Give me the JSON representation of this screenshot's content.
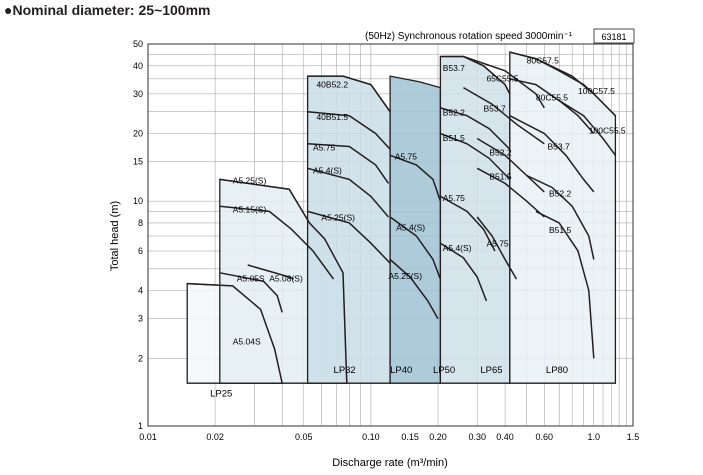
{
  "heading": "●Nominal diameter: 25~100mm",
  "chart_data": {
    "type": "performance-range",
    "title": "●Nominal diameter: 25~100mm",
    "subtitle": "(50Hz) Synchronous rotation speed 3000min⁻¹",
    "figure_id": "63181",
    "xlabel": "Discharge rate (m³/min)",
    "ylabel": "Total head (m)",
    "x_scale": "log",
    "y_scale": "log",
    "xlim": [
      0.01,
      1.5
    ],
    "ylim": [
      1,
      50
    ],
    "grid": true,
    "x_ticks": [
      {
        "v": 0.01,
        "label": "0.01"
      },
      {
        "v": 0.02,
        "label": "0.02"
      },
      {
        "v": 0.05,
        "label": "0.05"
      },
      {
        "v": 0.1,
        "label": "0.10"
      },
      {
        "v": 0.15,
        "label": "0.15"
      },
      {
        "v": 0.2,
        "label": "0.20"
      },
      {
        "v": 0.3,
        "label": "0.30"
      },
      {
        "v": 0.4,
        "label": "0.40"
      },
      {
        "v": 0.6,
        "label": "0.60"
      },
      {
        "v": 1.0,
        "label": "1.0"
      },
      {
        "v": 1.5,
        "label": "1.5"
      }
    ],
    "y_ticks": [
      {
        "v": 1,
        "label": "1"
      },
      {
        "v": 2,
        "label": "2"
      },
      {
        "v": 3,
        "label": "3"
      },
      {
        "v": 4,
        "label": "4"
      },
      {
        "v": 6,
        "label": "6"
      },
      {
        "v": 8,
        "label": "8"
      },
      {
        "v": 10,
        "label": "10"
      },
      {
        "v": 15,
        "label": "15"
      },
      {
        "v": 20,
        "label": "20"
      },
      {
        "v": 30,
        "label": "30"
      },
      {
        "v": 40,
        "label": "40"
      },
      {
        "v": 50,
        "label": "50"
      }
    ],
    "regions": [
      {
        "name": "LP25",
        "fill": "#f4f8fa",
        "label_at": [
          0.019,
          1.35
        ],
        "outline": [
          [
            0.015,
            1.55
          ],
          [
            0.015,
            4.3
          ],
          [
            0.024,
            4.2
          ],
          [
            0.032,
            3.3
          ],
          [
            0.037,
            2.2
          ],
          [
            0.04,
            1.55
          ]
        ]
      },
      {
        "name": "LP32",
        "fill": "#e3eef3",
        "label_at": [
          0.068,
          1.72
        ],
        "outline": [
          [
            0.021,
            1.55
          ],
          [
            0.021,
            12.5
          ],
          [
            0.043,
            11.3
          ],
          [
            0.053,
            8.0
          ],
          [
            0.062,
            6.8
          ],
          [
            0.075,
            4.8
          ],
          [
            0.078,
            1.55
          ]
        ]
      },
      {
        "name": "LP40",
        "fill": "#c9dde6",
        "label_at": [
          0.122,
          1.72
        ],
        "outline": [
          [
            0.052,
            1.55
          ],
          [
            0.052,
            36
          ],
          [
            0.075,
            36
          ],
          [
            0.1,
            33
          ],
          [
            0.122,
            25
          ],
          [
            0.122,
            1.55
          ]
        ]
      },
      {
        "name": "LP50",
        "fill": "#9fc2d2",
        "label_at": [
          0.19,
          1.72
        ],
        "outline": [
          [
            0.122,
            1.55
          ],
          [
            0.122,
            36
          ],
          [
            0.165,
            34
          ],
          [
            0.205,
            32
          ],
          [
            0.205,
            1.55
          ]
        ]
      },
      {
        "name": "LP65",
        "fill": "#cfe1e8",
        "label_at": [
          0.31,
          1.72
        ],
        "outline": [
          [
            0.205,
            1.55
          ],
          [
            0.205,
            44
          ],
          [
            0.26,
            44
          ],
          [
            0.32,
            40
          ],
          [
            0.4,
            33
          ],
          [
            0.42,
            30
          ],
          [
            0.42,
            1.55
          ]
        ]
      },
      {
        "name": "LP80",
        "fill": "#e8f1f5",
        "label_at": [
          0.61,
          1.72
        ],
        "outline": [
          [
            0.42,
            1.55
          ],
          [
            0.42,
            46
          ],
          [
            0.55,
            43
          ],
          [
            0.7,
            38
          ],
          [
            0.9,
            33
          ],
          [
            1.0,
            30
          ],
          [
            1.25,
            24
          ],
          [
            1.25,
            1.55
          ]
        ]
      }
    ],
    "curves": [
      {
        "name": "A5.04S",
        "label_at": [
          0.024,
          2.3
        ],
        "points": [
          [
            0.015,
            4.3
          ],
          [
            0.024,
            4.2
          ],
          [
            0.032,
            3.3
          ],
          [
            0.037,
            2.2
          ],
          [
            0.04,
            1.55
          ]
        ]
      },
      {
        "name": "A5.05S",
        "label_at": [
          0.025,
          4.4
        ],
        "points": [
          [
            0.021,
            4.8
          ],
          [
            0.033,
            4.4
          ],
          [
            0.038,
            3.8
          ],
          [
            0.04,
            3.2
          ]
        ]
      },
      {
        "name": "A5.08(S)",
        "label_at": [
          0.035,
          4.4
        ],
        "points": [
          [
            0.028,
            5.2
          ],
          [
            0.043,
            4.6
          ],
          [
            0.045,
            4.5
          ]
        ]
      },
      {
        "name": "A5.15(S)",
        "label_at": [
          0.024,
          8.9
        ],
        "points": [
          [
            0.021,
            9.5
          ],
          [
            0.035,
            9.0
          ],
          [
            0.044,
            7.5
          ],
          [
            0.055,
            6.0
          ],
          [
            0.068,
            4.5
          ]
        ]
      },
      {
        "name": "A5.25(S)",
        "label_at": [
          0.024,
          12.0
        ],
        "points": [
          [
            0.021,
            12.5
          ],
          [
            0.043,
            11.3
          ],
          [
            0.053,
            8.0
          ],
          [
            0.062,
            6.8
          ],
          [
            0.075,
            4.8
          ],
          [
            0.078,
            1.55
          ]
        ]
      },
      {
        "name": "40B52.2",
        "label_at": [
          0.057,
          32
        ],
        "points": [
          [
            0.052,
            36
          ],
          [
            0.075,
            36
          ],
          [
            0.1,
            33
          ],
          [
            0.122,
            25
          ]
        ]
      },
      {
        "name": "40B51.5",
        "label_at": [
          0.057,
          23
        ],
        "points": [
          [
            0.052,
            25
          ],
          [
            0.08,
            24
          ],
          [
            0.105,
            20
          ],
          [
            0.122,
            17
          ]
        ]
      },
      {
        "name": "A5.75",
        "label_at": [
          0.055,
          16.8
        ],
        "points": [
          [
            0.052,
            18
          ],
          [
            0.08,
            17.5
          ],
          [
            0.105,
            14.5
          ],
          [
            0.12,
            12
          ]
        ]
      },
      {
        "name": "A5.4(S)",
        "label_at": [
          0.055,
          13.3
        ],
        "points": [
          [
            0.052,
            14
          ],
          [
            0.08,
            12.5
          ],
          [
            0.1,
            10.5
          ],
          [
            0.12,
            8.5
          ]
        ]
      },
      {
        "name": "A5.25(S)",
        "label_at": [
          0.06,
          8.2
        ],
        "points": [
          [
            0.052,
            9.0
          ],
          [
            0.08,
            8.0
          ],
          [
            0.1,
            6.5
          ],
          [
            0.122,
            5.3
          ]
        ]
      },
      {
        "name": "A5.75",
        "label_at": [
          0.128,
          15.3
        ],
        "points": [
          [
            0.122,
            16
          ],
          [
            0.16,
            14.5
          ],
          [
            0.19,
            12.5
          ],
          [
            0.205,
            10
          ]
        ]
      },
      {
        "name": "A5.4(S)",
        "label_at": [
          0.13,
          7.4
        ],
        "points": [
          [
            0.122,
            8.5
          ],
          [
            0.16,
            7
          ],
          [
            0.19,
            5.5
          ],
          [
            0.205,
            4.5
          ]
        ]
      },
      {
        "name": "A5.25(S)",
        "label_at": [
          0.12,
          4.5
        ],
        "points": [
          [
            0.122,
            5.5
          ],
          [
            0.15,
            4.6
          ],
          [
            0.18,
            3.6
          ],
          [
            0.2,
            3
          ]
        ]
      },
      {
        "name": "B53.7",
        "label_at": [
          0.21,
          38
        ],
        "points": [
          [
            0.205,
            44
          ],
          [
            0.26,
            44
          ],
          [
            0.32,
            40
          ],
          [
            0.4,
            33
          ],
          [
            0.42,
            30
          ]
        ]
      },
      {
        "name": "B52.2",
        "label_at": [
          0.21,
          24
        ],
        "points": [
          [
            0.205,
            26
          ],
          [
            0.27,
            24
          ],
          [
            0.34,
            21
          ],
          [
            0.42,
            17
          ]
        ]
      },
      {
        "name": "B51.5",
        "label_at": [
          0.21,
          18.5
        ],
        "points": [
          [
            0.205,
            20
          ],
          [
            0.27,
            18
          ],
          [
            0.34,
            15.5
          ],
          [
            0.42,
            12.5
          ]
        ]
      },
      {
        "name": "A5.75",
        "label_at": [
          0.21,
          10.0
        ],
        "points": [
          [
            0.205,
            10.5
          ],
          [
            0.27,
            9.0
          ],
          [
            0.32,
            7.5
          ],
          [
            0.36,
            6
          ]
        ]
      },
      {
        "name": "A5.4(S)",
        "label_at": [
          0.21,
          6.0
        ],
        "points": [
          [
            0.205,
            6.5
          ],
          [
            0.26,
            5.6
          ],
          [
            0.3,
            4.6
          ],
          [
            0.33,
            3.6
          ]
        ]
      },
      {
        "name": "65C55.5",
        "label_at": [
          0.33,
          34
        ],
        "points": [
          [
            0.26,
            44
          ],
          [
            0.4,
            38
          ],
          [
            0.55,
            30
          ],
          [
            0.6,
            26
          ]
        ]
      },
      {
        "name": "B53.7",
        "label_at": [
          0.32,
          25
        ],
        "points": [
          [
            0.26,
            32
          ],
          [
            0.35,
            27
          ],
          [
            0.45,
            22
          ],
          [
            0.6,
            18
          ]
        ]
      },
      {
        "name": "B52.2",
        "label_at": [
          0.34,
          16
        ],
        "points": [
          [
            0.3,
            19
          ],
          [
            0.4,
            16
          ],
          [
            0.5,
            13
          ],
          [
            0.6,
            11
          ]
        ]
      },
      {
        "name": "B51.5",
        "label_at": [
          0.34,
          12.5
        ],
        "points": [
          [
            0.3,
            14
          ],
          [
            0.4,
            12
          ],
          [
            0.5,
            10
          ],
          [
            0.6,
            8.5
          ]
        ]
      },
      {
        "name": "A5.75",
        "label_at": [
          0.33,
          6.3
        ],
        "points": [
          [
            0.3,
            8.5
          ],
          [
            0.35,
            7
          ],
          [
            0.4,
            5.5
          ],
          [
            0.45,
            4.5
          ]
        ]
      },
      {
        "name": "80C57.5",
        "label_at": [
          0.5,
          41
        ],
        "points": [
          [
            0.42,
            46
          ],
          [
            0.55,
            43
          ],
          [
            0.7,
            38
          ],
          [
            0.9,
            33
          ],
          [
            1.0,
            30
          ]
        ]
      },
      {
        "name": "80C55.5",
        "label_at": [
          0.55,
          28
        ],
        "points": [
          [
            0.42,
            35
          ],
          [
            0.55,
            33
          ],
          [
            0.7,
            28
          ],
          [
            0.85,
            24
          ],
          [
            1.0,
            20
          ]
        ]
      },
      {
        "name": "100C57.5",
        "label_at": [
          0.85,
          30
        ],
        "points": [
          [
            0.55,
            43
          ],
          [
            0.8,
            36
          ],
          [
            1.0,
            30
          ],
          [
            1.25,
            24
          ]
        ]
      },
      {
        "name": "100C55.5",
        "label_at": [
          0.95,
          20
        ],
        "points": [
          [
            0.7,
            28
          ],
          [
            0.9,
            24
          ],
          [
            1.1,
            19
          ],
          [
            1.25,
            16
          ]
        ]
      },
      {
        "name": "B53.7",
        "label_at": [
          0.62,
          17
        ],
        "points": [
          [
            0.42,
            24
          ],
          [
            0.6,
            20
          ],
          [
            0.75,
            16
          ],
          [
            0.9,
            12.5
          ],
          [
            1.0,
            11
          ]
        ]
      },
      {
        "name": "B52.2",
        "label_at": [
          0.63,
          10.5
        ],
        "points": [
          [
            0.5,
            13
          ],
          [
            0.65,
            11.5
          ],
          [
            0.8,
            9.5
          ],
          [
            0.95,
            7
          ],
          [
            1.0,
            5.5
          ]
        ]
      },
      {
        "name": "B51.5",
        "label_at": [
          0.63,
          7.2
        ],
        "points": [
          [
            0.55,
            9
          ],
          [
            0.7,
            8
          ],
          [
            0.85,
            6
          ],
          [
            0.95,
            4
          ],
          [
            1.0,
            2
          ]
        ]
      }
    ]
  }
}
